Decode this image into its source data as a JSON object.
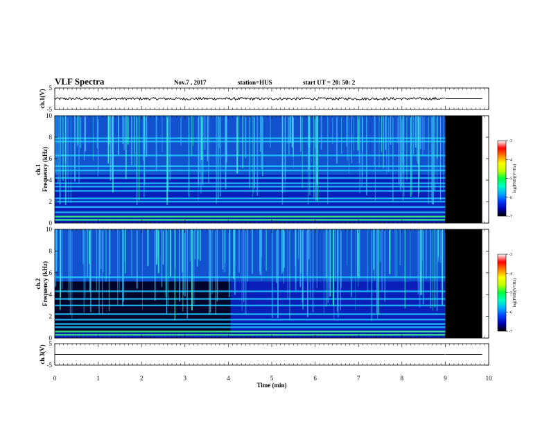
{
  "header": {
    "title": "VLF Spectra",
    "date": "Nov.7 , 2017",
    "station": "station=HUS",
    "start": "start UT = 20: 50: 2"
  },
  "chart_data": {
    "type": "heatmap",
    "xlabel": "Time (min)",
    "xlim": [
      0,
      10
    ],
    "xticks": [
      "0",
      "1",
      "2",
      "3",
      "4",
      "5",
      "6",
      "7",
      "8",
      "9",
      "10"
    ],
    "data_end_min": 9.0,
    "panels": [
      {
        "name": "ch1-waveform",
        "ylabel": "ch.1(V)",
        "ylim": [
          -5,
          5
        ],
        "yticks": [
          "5",
          "-5"
        ],
        "kind": "waveform",
        "amplitude": 0.6
      },
      {
        "name": "ch1-spectrogram",
        "ylabel_lines": [
          "ch.1",
          "Frequency (kHz)"
        ],
        "ylim": [
          0,
          10
        ],
        "yticks": [
          "0",
          "2",
          "4",
          "6",
          "8",
          "10"
        ],
        "kind": "spectrogram",
        "bands_khz": [
          0.3,
          0.6,
          1.0,
          1.5,
          2.0,
          2.3,
          3.0,
          3.4,
          3.7,
          4.2,
          4.9,
          5.3,
          6.3,
          7.6,
          7.9
        ]
      },
      {
        "name": "ch2-spectrogram",
        "ylabel_lines": [
          "ch.2",
          "Frequency (kHz)"
        ],
        "ylim": [
          0,
          10
        ],
        "yticks": [
          "0",
          "2",
          "4",
          "6",
          "8",
          "10"
        ],
        "kind": "spectrogram",
        "bands_khz": [
          0.3,
          0.6,
          1.0,
          1.3,
          1.7,
          2.2,
          3.0,
          3.6,
          4.3,
          5.6
        ]
      },
      {
        "name": "ch3-waveform",
        "ylabel": "ch.3(V)",
        "ylim": [
          -5,
          5
        ],
        "yticks": [
          "5",
          "-5"
        ],
        "kind": "waveform",
        "amplitude": 0.0
      }
    ],
    "colorbar": {
      "label": "log(PSD)(V²/Hz)",
      "range": [
        -7,
        -3
      ],
      "ticks": [
        "-3",
        "-4",
        "-5",
        "-6",
        "-7"
      ],
      "colors": [
        "#000000",
        "#0000b0",
        "#0040ff",
        "#00b0ff",
        "#00ffc0",
        "#00ff40",
        "#c0ff00",
        "#ffff00",
        "#ff8000",
        "#ff0000",
        "#ffffff"
      ]
    }
  }
}
